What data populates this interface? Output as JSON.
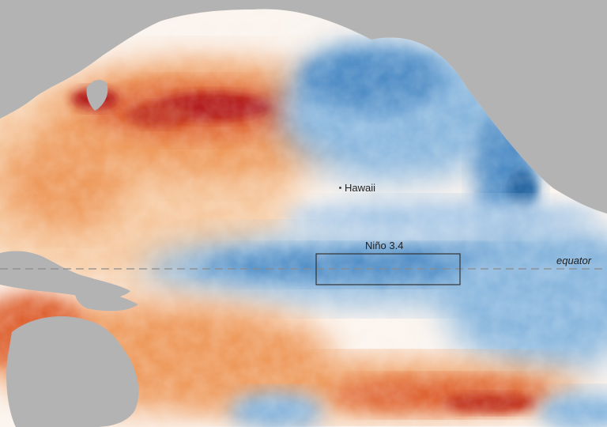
{
  "labels": {
    "hawaii": "Hawaii",
    "nino_region": "Niño 3.4",
    "equator": "equator"
  },
  "colors": {
    "land": "#b3b3b3",
    "ocean_neutral": "#fbf4ee",
    "warm_light": "#f6c9a0",
    "warm": "#ee9a5c",
    "warm_strong": "#de6230",
    "warm_extreme": "#b41f1c",
    "cool_light": "#cfe2f1",
    "cool": "#8ab7de",
    "cool_strong": "#4f8dc6",
    "cool_extreme": "#1f5f9e",
    "equator_line": "#8c8c8c",
    "box_stroke": "#333333"
  }
}
